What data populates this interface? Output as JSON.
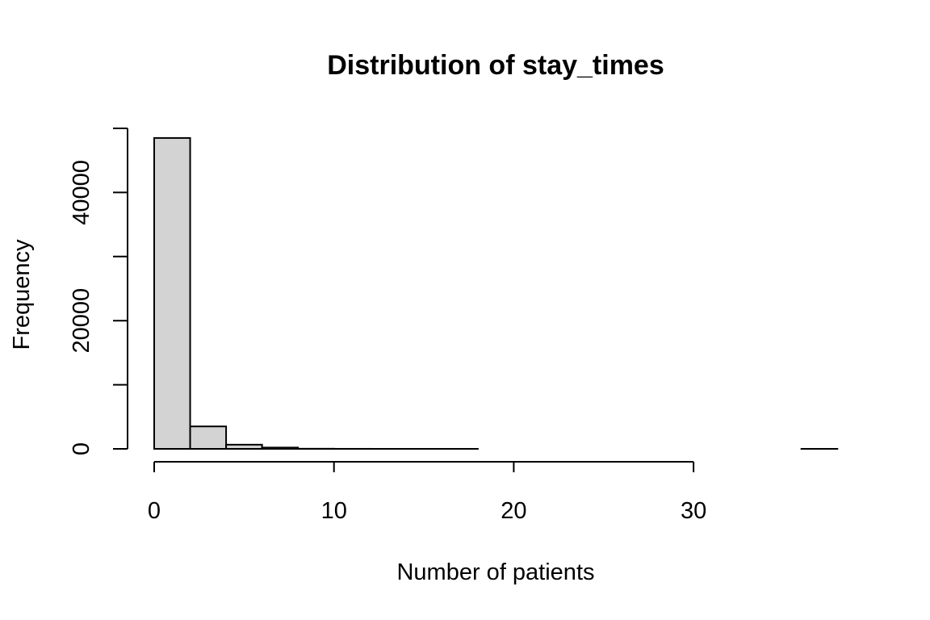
{
  "chart_data": {
    "type": "bar",
    "subtype": "histogram",
    "title": "Distribution of stay_times",
    "xlabel": "Number of patients",
    "ylabel": "Frequency",
    "bins": [
      {
        "start": 0,
        "end": 2,
        "count": 48500
      },
      {
        "start": 2,
        "end": 4,
        "count": 3500
      },
      {
        "start": 4,
        "end": 6,
        "count": 650
      },
      {
        "start": 6,
        "end": 8,
        "count": 200
      },
      {
        "start": 8,
        "end": 10,
        "count": 20
      },
      {
        "start": 10,
        "end": 12,
        "count": 5
      },
      {
        "start": 12,
        "end": 14,
        "count": 2
      },
      {
        "start": 14,
        "end": 16,
        "count": 1
      },
      {
        "start": 16,
        "end": 18,
        "count": 1
      },
      {
        "start": 18,
        "end": 20,
        "count": 0
      },
      {
        "start": 20,
        "end": 22,
        "count": 0
      },
      {
        "start": 22,
        "end": 24,
        "count": 0
      },
      {
        "start": 24,
        "end": 26,
        "count": 0
      },
      {
        "start": 26,
        "end": 28,
        "count": 0
      },
      {
        "start": 28,
        "end": 30,
        "count": 0
      },
      {
        "start": 30,
        "end": 32,
        "count": 0
      },
      {
        "start": 32,
        "end": 34,
        "count": 0
      },
      {
        "start": 34,
        "end": 36,
        "count": 0
      },
      {
        "start": 36,
        "end": 38,
        "count": 1
      }
    ],
    "x_ticks": [
      0,
      10,
      20,
      30
    ],
    "x_tick_labels": [
      "0",
      "10",
      "20",
      "30"
    ],
    "y_ticks": [
      0,
      10000,
      20000,
      30000,
      40000,
      50000
    ],
    "y_tick_labels": [
      "0",
      "",
      "20000",
      "",
      "40000",
      ""
    ],
    "xlim": [
      0,
      38
    ],
    "ylim": [
      0,
      50000
    ],
    "grid": false,
    "legend": "none",
    "bar_fill": "#d3d3d3",
    "bar_stroke": "#000000"
  }
}
